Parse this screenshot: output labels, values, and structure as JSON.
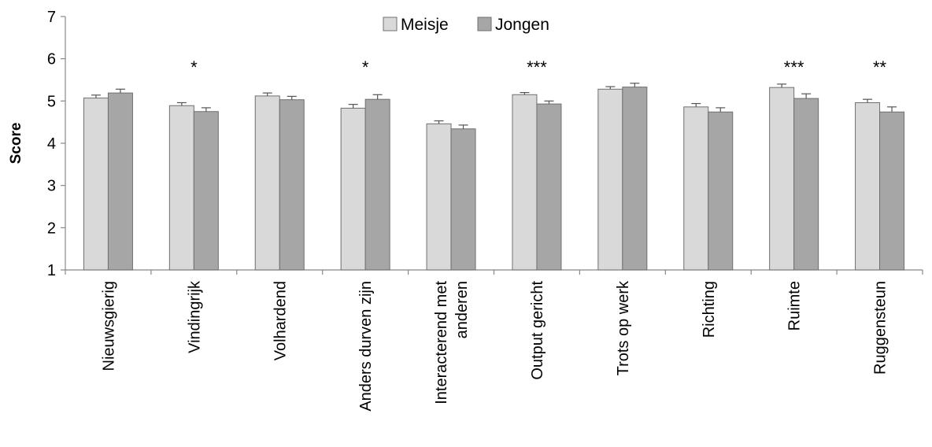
{
  "chart_data": {
    "type": "bar",
    "ylabel": "Score",
    "ylim": [
      1,
      7
    ],
    "yticks": [
      1,
      2,
      3,
      4,
      5,
      6,
      7
    ],
    "grid": false,
    "legend_position": "top-center",
    "categories": [
      [
        "Nieuwsgierig"
      ],
      [
        "Vindingrijk"
      ],
      [
        "Volhardend"
      ],
      [
        "Anders durven zijn"
      ],
      [
        "Interacterend met",
        "anderen"
      ],
      [
        "Output gericht"
      ],
      [
        "Trots op werk"
      ],
      [
        "Richting"
      ],
      [
        "Ruimte"
      ],
      [
        "Ruggensteun"
      ]
    ],
    "series": [
      {
        "name": "Meisje",
        "color": "#d9d9d9",
        "values": [
          5.07,
          4.89,
          5.12,
          4.83,
          4.46,
          5.15,
          5.28,
          4.86,
          5.32,
          4.96
        ],
        "errors": [
          0.07,
          0.07,
          0.07,
          0.09,
          0.07,
          0.05,
          0.06,
          0.08,
          0.08,
          0.08
        ]
      },
      {
        "name": "Jongen",
        "color": "#a6a6a6",
        "values": [
          5.19,
          4.75,
          5.03,
          5.04,
          4.34,
          4.93,
          5.33,
          4.74,
          5.06,
          4.74
        ],
        "errors": [
          0.09,
          0.09,
          0.08,
          0.11,
          0.09,
          0.07,
          0.09,
          0.1,
          0.11,
          0.12
        ]
      }
    ],
    "significance": [
      "",
      "*",
      "",
      "*",
      "",
      "***",
      "",
      "",
      "***",
      "**"
    ]
  }
}
